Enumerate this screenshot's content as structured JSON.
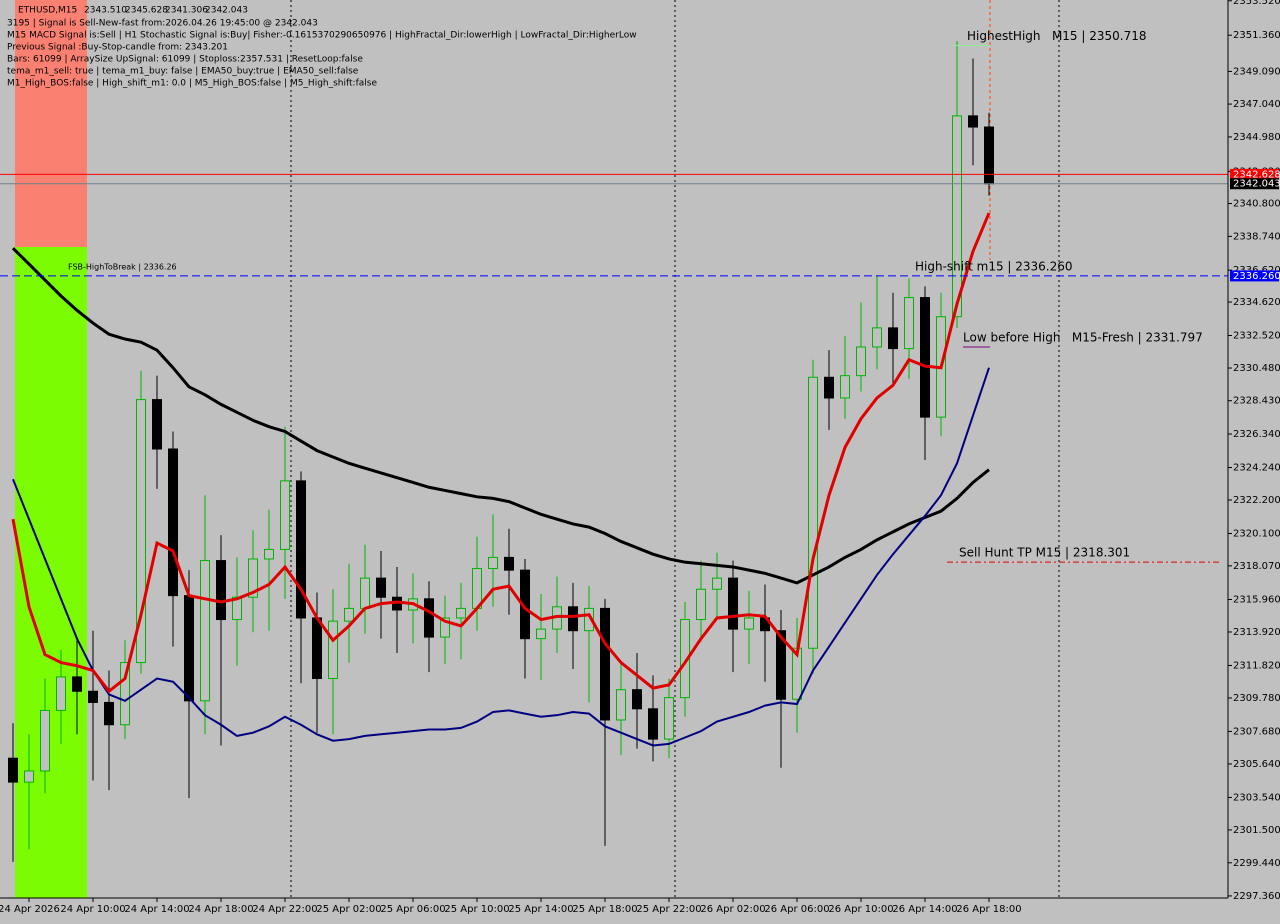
{
  "header": {
    "symbol": "ETHUSD,M15",
    "ohlc": [
      "2343.510",
      "2345.628",
      "2341.306",
      "2342.043"
    ],
    "info": [
      "3195 | Signal is Sell-New-fast from:2026.04.26 19:45:00 @ 2342.043",
      "M15 MACD Signal is:Sell | H1 Stochastic Signal is:Buy| Fisher:-0.1615370290650976 | HighFractal_Dir:lowerHigh | LowFractal_Dir:HigherLow",
      "Previous Signal :Buy-Stop-candle from: 2343.201",
      "Bars: 61099 | ArraySize UpSignal: 61099 | Stoploss:2357.531 | ResetLoop:false",
      "tema_m1_sell: true | tema_m1_buy: false | EMA50_buy:true | EMA50_sell:false",
      "M1_High_BOS:false | High_shift_m1: 0.0 | M5_High_BOS:false | M5_High_shift:false"
    ]
  },
  "chart_data": {
    "type": "candlestick",
    "categories": [
      null,
      "24 Apr 2026",
      null,
      null,
      null,
      "24 Apr 10:00",
      null,
      null,
      null,
      "24 Apr 14:00",
      null,
      null,
      null,
      "24 Apr 18:00",
      null,
      null,
      null,
      "24 Apr 22:00",
      null,
      null,
      null,
      "25 Apr 02:00",
      null,
      null,
      null,
      "25 Apr 06:00",
      null,
      null,
      null,
      "25 Apr 10:00",
      null,
      null,
      null,
      "25 Apr 14:00",
      null,
      null,
      null,
      "25 Apr 18:00",
      null,
      null,
      null,
      "25 Apr 22:00",
      null,
      null,
      null,
      "26 Apr 02:00",
      null,
      null,
      null,
      "26 Apr 06:00",
      null,
      null,
      null,
      "26 Apr 10:00",
      null,
      null,
      null,
      "26 Apr 14:00",
      null,
      null,
      null,
      "26 Apr 18:00"
    ],
    "open": [
      2306.0,
      2304.5,
      2305.2,
      2309.0,
      2311.1,
      2310.2,
      2309.5,
      2308.1,
      2312.0,
      2328.5,
      2325.4,
      2316.2,
      2309.6,
      2318.4,
      2314.7,
      2316.1,
      2318.5,
      2319.1,
      2323.4,
      2314.8,
      2311.0,
      2314.6,
      2315.4,
      2317.3,
      2316.1,
      2315.3,
      2316.0,
      2313.6,
      2314.8,
      2315.4,
      2317.9,
      2318.6,
      2317.8,
      2313.5,
      2314.1,
      2315.5,
      2314.0,
      2315.4,
      2308.4,
      2310.3,
      2309.1,
      2307.2,
      2309.8,
      2314.7,
      2316.6,
      2317.3,
      2314.1,
      2314.8,
      2314.0,
      2309.7,
      2312.9,
      2329.9,
      2328.6,
      2330.0,
      2331.8,
      2333.0,
      2331.7,
      2334.9,
      2327.4,
      2333.7,
      2346.3,
      2345.6
    ],
    "high": [
      2308.2,
      2307.5,
      2311.0,
      2312.8,
      2313.5,
      2314.0,
      2311.5,
      2313.4,
      2330.3,
      2330.0,
      2326.5,
      2317.8,
      2322.5,
      2320.0,
      2318.6,
      2320.3,
      2321.6,
      2326.8,
      2324.0,
      2316.4,
      2316.6,
      2318.2,
      2319.4,
      2319.0,
      2318.0,
      2317.6,
      2317.1,
      2316.2,
      2317.0,
      2319.9,
      2321.3,
      2320.4,
      2318.5,
      2316.3,
      2317.4,
      2317.0,
      2316.8,
      2316.0,
      2312.0,
      2312.6,
      2311.2,
      2311.0,
      2315.8,
      2318.4,
      2318.9,
      2318.4,
      2316.5,
      2316.9,
      2315.3,
      2314.8,
      2331.0,
      2331.6,
      2332.5,
      2334.6,
      2336.3,
      2335.2,
      2336.1,
      2335.6,
      2335.2,
      2351.0,
      2349.9,
      2346.5
    ],
    "low": [
      2299.5,
      2300.3,
      2303.8,
      2306.9,
      2307.5,
      2304.6,
      2304.0,
      2307.2,
      2311.3,
      2322.9,
      2313.0,
      2303.5,
      2307.5,
      2306.8,
      2311.8,
      2313.9,
      2314.0,
      2316.0,
      2310.7,
      2307.6,
      2307.5,
      2312.0,
      2313.8,
      2313.5,
      2312.6,
      2313.2,
      2311.4,
      2311.9,
      2312.2,
      2314.0,
      2315.5,
      2315.0,
      2311.0,
      2310.9,
      2312.6,
      2311.6,
      2309.5,
      2300.5,
      2306.2,
      2306.6,
      2305.8,
      2306.0,
      2308.6,
      2313.3,
      2314.8,
      2311.4,
      2311.9,
      2310.8,
      2305.4,
      2307.6,
      2311.3,
      2326.6,
      2327.3,
      2329.0,
      2330.4,
      2329.5,
      2329.8,
      2324.7,
      2326.2,
      2333.0,
      2343.2,
      2341.3
    ],
    "close": [
      2304.5,
      2305.2,
      2309.0,
      2311.1,
      2310.2,
      2309.5,
      2308.1,
      2312.0,
      2328.5,
      2325.4,
      2316.2,
      2309.6,
      2318.4,
      2314.7,
      2316.1,
      2318.5,
      2319.1,
      2323.4,
      2314.8,
      2311.0,
      2314.6,
      2315.4,
      2317.3,
      2316.1,
      2315.3,
      2316.0,
      2313.6,
      2314.8,
      2315.4,
      2317.9,
      2318.6,
      2317.8,
      2313.5,
      2314.1,
      2315.5,
      2314.0,
      2315.4,
      2308.4,
      2310.3,
      2309.1,
      2307.2,
      2309.8,
      2314.7,
      2316.6,
      2317.3,
      2314.1,
      2314.8,
      2314.0,
      2309.7,
      2312.9,
      2329.9,
      2328.6,
      2330.0,
      2331.8,
      2333.0,
      2331.7,
      2334.9,
      2327.4,
      2333.7,
      2346.3,
      2345.6,
      2342.04
    ],
    "up_color": "#00b400",
    "down_color": "#000000",
    "series": [
      {
        "color": "#000000",
        "width": 3,
        "values": [
          2338.0,
          2337.0,
          2336.0,
          2335.0,
          2334.1,
          2333.3,
          2332.6,
          2332.3,
          2332.1,
          2331.6,
          2330.5,
          2329.3,
          2328.8,
          2328.2,
          2327.7,
          2327.2,
          2326.8,
          2326.5,
          2325.9,
          2325.3,
          2324.9,
          2324.5,
          2324.2,
          2323.9,
          2323.6,
          2323.3,
          2323.0,
          2322.8,
          2322.6,
          2322.4,
          2322.3,
          2322.1,
          2321.7,
          2321.3,
          2321.0,
          2320.7,
          2320.5,
          2320.1,
          2319.6,
          2319.2,
          2318.8,
          2318.5,
          2318.3,
          2318.2,
          2318.1,
          2318.0,
          2317.8,
          2317.6,
          2317.3,
          2317.0,
          2317.5,
          2318.0,
          2318.6,
          2319.1,
          2319.7,
          2320.2,
          2320.7,
          2321.1,
          2321.5,
          2322.3,
          2323.3,
          2324.1
        ]
      },
      {
        "color": "#000080",
        "width": 2,
        "values": [
          2323.5,
          2321.0,
          2318.5,
          2316.0,
          2313.5,
          2311.5,
          2310.0,
          2309.6,
          2310.3,
          2311.0,
          2310.8,
          2309.8,
          2308.7,
          2308.1,
          2307.4,
          2307.6,
          2308.0,
          2308.6,
          2308.1,
          2307.5,
          2307.1,
          2307.2,
          2307.4,
          2307.5,
          2307.6,
          2307.7,
          2307.8,
          2307.8,
          2307.9,
          2308.3,
          2308.9,
          2309.0,
          2308.8,
          2308.6,
          2308.7,
          2308.9,
          2308.8,
          2308.0,
          2307.6,
          2307.2,
          2306.8,
          2306.9,
          2307.3,
          2307.7,
          2308.3,
          2308.6,
          2308.9,
          2309.3,
          2309.5,
          2309.4,
          2311.5,
          2313.0,
          2314.5,
          2316.0,
          2317.5,
          2318.8,
          2320.0,
          2321.2,
          2322.5,
          2324.5,
          2327.5,
          2330.5
        ]
      },
      {
        "color": "#e00000",
        "width": 3,
        "values": [
          2321.0,
          2315.5,
          2312.5,
          2312.0,
          2311.8,
          2311.5,
          2310.2,
          2311.0,
          2315.0,
          2319.5,
          2319.0,
          2316.2,
          2316.0,
          2315.8,
          2316.0,
          2316.4,
          2316.9,
          2318.0,
          2316.6,
          2314.8,
          2313.4,
          2314.3,
          2315.4,
          2315.7,
          2315.8,
          2315.7,
          2315.2,
          2314.6,
          2314.3,
          2315.4,
          2316.6,
          2316.8,
          2315.4,
          2314.7,
          2314.9,
          2314.9,
          2315.0,
          2313.2,
          2312.0,
          2311.2,
          2310.4,
          2310.6,
          2312.0,
          2313.5,
          2314.8,
          2314.9,
          2315.0,
          2314.9,
          2313.6,
          2312.5,
          2318.5,
          2322.5,
          2325.5,
          2327.3,
          2328.6,
          2329.4,
          2331.0,
          2330.6,
          2330.5,
          2334.5,
          2337.8,
          2340.2
        ]
      }
    ],
    "ylim": [
      2297.23,
      2353.57
    ],
    "yticks": [
      {
        "value": 2353.52,
        "label": "2353.520"
      },
      {
        "value": 2351.36,
        "label": "2351.360"
      },
      {
        "value": 2349.09,
        "label": "2349.090"
      },
      {
        "value": 2347.04,
        "label": "2347.040"
      },
      {
        "value": 2344.98,
        "label": "2344.980"
      },
      {
        "value": 2342.82,
        "label": "2342.820"
      },
      {
        "value": 2340.8,
        "label": "2340.800"
      },
      {
        "value": 2338.74,
        "label": "2338.740"
      },
      {
        "value": 2336.62,
        "label": "2336.620"
      },
      {
        "value": 2334.62,
        "label": "2334.620"
      },
      {
        "value": 2332.52,
        "label": "2332.520"
      },
      {
        "value": 2330.48,
        "label": "2330.480"
      },
      {
        "value": 2328.43,
        "label": "2328.430"
      },
      {
        "value": 2326.34,
        "label": "2326.340"
      },
      {
        "value": 2324.24,
        "label": "2324.240"
      },
      {
        "value": 2322.2,
        "label": "2322.200"
      },
      {
        "value": 2320.1,
        "label": "2320.100"
      },
      {
        "value": 2318.07,
        "label": "2318.070"
      },
      {
        "value": 2315.96,
        "label": "2315.960"
      },
      {
        "value": 2313.92,
        "label": "2313.920"
      },
      {
        "value": 2311.82,
        "label": "2311.820"
      },
      {
        "value": 2309.78,
        "label": "2309.780"
      },
      {
        "value": 2307.68,
        "label": "2307.680"
      },
      {
        "value": 2305.64,
        "label": "2305.640"
      },
      {
        "value": 2303.54,
        "label": "2303.540"
      },
      {
        "value": 2301.5,
        "label": "2301.500"
      },
      {
        "value": 2299.44,
        "label": "2299.440"
      },
      {
        "value": 2297.36,
        "label": "2297.360"
      }
    ],
    "price_tags": [
      {
        "value": 2342.628,
        "label": "2342.628",
        "color": "#ff0000"
      },
      {
        "value": 2342.043,
        "label": "2342.043",
        "color": "#000000"
      },
      {
        "value": 2336.26,
        "label": "2336.260",
        "color": "#0000ff"
      }
    ],
    "levels": [
      {
        "text": "HighestHigh   M15 | 2350.718",
        "value": 2350.718,
        "color": "#90ee90"
      },
      {
        "text": "High-shift m15 | 2336.260",
        "value": 2336.26,
        "color": "#0000ff"
      },
      {
        "text": "Low before High   M15-Fresh | 2331.797",
        "value": 2331.797,
        "color": "#800080"
      },
      {
        "text": "Sell Hunt TP M15 | 2318.301",
        "value": 2318.301,
        "color": "#e00000"
      },
      {
        "text": "FSB-HighToBreak | 2336.26",
        "value": 2336.26,
        "color": "#0000ff"
      }
    ]
  }
}
